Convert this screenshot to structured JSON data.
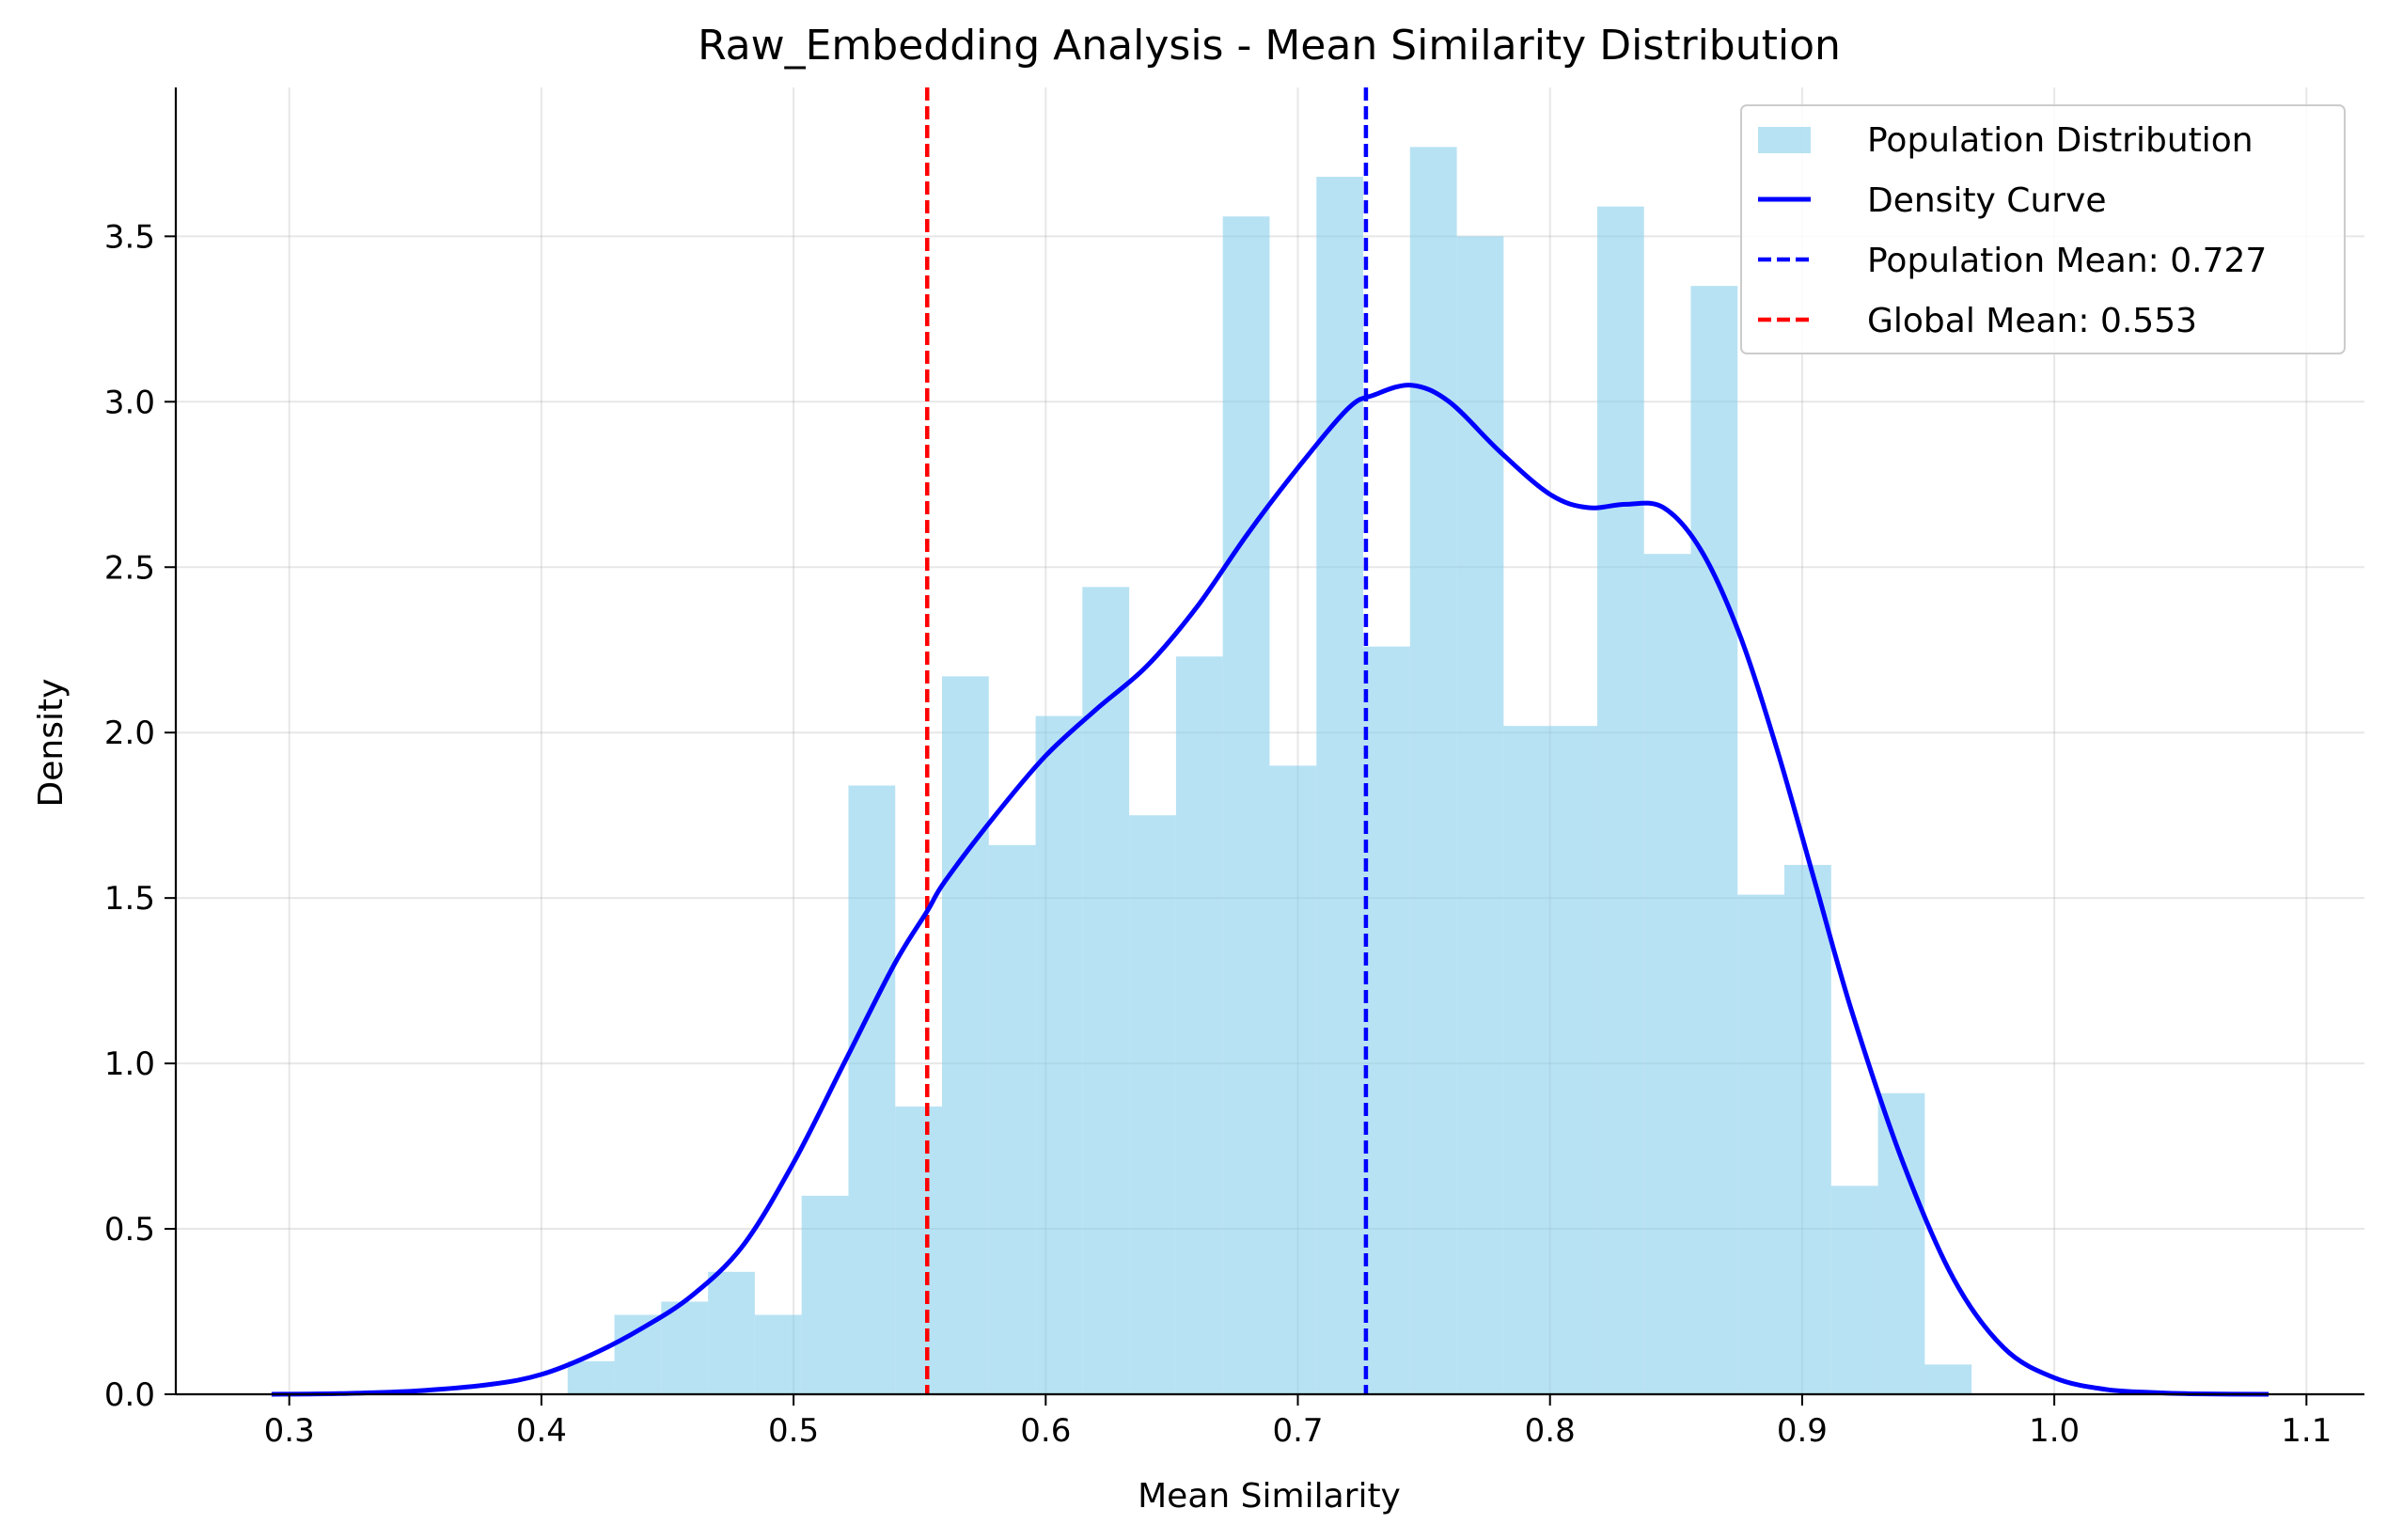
{
  "chart_data": {
    "type": "bar",
    "title": "Raw_Embedding Analysis - Mean Similarity Distribution",
    "xlabel": "Mean Similarity",
    "ylabel": "Density",
    "xlim": [
      0.255,
      1.123
    ],
    "ylim": [
      0,
      3.95
    ],
    "x_ticks": [
      "0.3",
      "0.4",
      "0.5",
      "0.6",
      "0.7",
      "0.8",
      "0.9",
      "1.0",
      "1.1"
    ],
    "y_ticks": [
      "0.0",
      "0.5",
      "1.0",
      "1.5",
      "2.0",
      "2.5",
      "3.0",
      "3.5"
    ],
    "grid": true,
    "legend_position": "top-right",
    "colors": {
      "histogram": "#87ceeb",
      "density": "#0000ff",
      "population_mean": "#0000ff",
      "global_mean": "#ff0000"
    },
    "histogram": {
      "name": "Population Distribution",
      "bin_start": 0.4104,
      "bin_width": 0.01856,
      "values": [
        0.1,
        0.24,
        0.28,
        0.37,
        0.24,
        0.6,
        1.84,
        0.87,
        2.17,
        1.66,
        2.05,
        2.44,
        1.75,
        2.23,
        3.56,
        1.9,
        3.68,
        2.26,
        3.77,
        3.5,
        2.02,
        2.02,
        3.59,
        2.54,
        3.35,
        1.51,
        1.6,
        0.63,
        0.91,
        0.09
      ]
    },
    "density_curve": {
      "name": "Density Curve",
      "x": [
        0.293,
        0.32,
        0.35,
        0.38,
        0.4,
        0.42,
        0.44,
        0.46,
        0.48,
        0.5,
        0.52,
        0.54,
        0.553,
        0.56,
        0.58,
        0.6,
        0.62,
        0.64,
        0.66,
        0.68,
        0.7,
        0.72,
        0.73,
        0.745,
        0.76,
        0.78,
        0.8,
        0.815,
        0.83,
        0.845,
        0.86,
        0.875,
        0.89,
        0.905,
        0.92,
        0.94,
        0.96,
        0.98,
        1.0,
        1.02,
        1.04,
        1.06,
        1.085
      ],
      "y": [
        0.0,
        0.002,
        0.01,
        0.03,
        0.06,
        0.12,
        0.2,
        0.3,
        0.45,
        0.7,
        1.0,
        1.3,
        1.46,
        1.55,
        1.75,
        1.93,
        2.07,
        2.2,
        2.38,
        2.6,
        2.8,
        2.98,
        3.02,
        3.05,
        3.0,
        2.85,
        2.72,
        2.68,
        2.69,
        2.68,
        2.55,
        2.3,
        1.95,
        1.55,
        1.15,
        0.7,
        0.35,
        0.14,
        0.05,
        0.015,
        0.005,
        0.001,
        0.0
      ]
    },
    "vlines": [
      {
        "name": "Population Mean: 0.727",
        "x": 0.727,
        "color": "#0000ff"
      },
      {
        "name": "Global Mean: 0.553",
        "x": 0.553,
        "color": "#ff0000"
      }
    ]
  }
}
